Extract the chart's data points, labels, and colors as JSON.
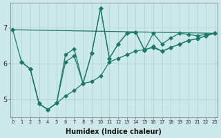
{
  "xlabel": "Humidex (Indice chaleur)",
  "bg_color": "#cce8e8",
  "grid_color": "#b0d4d4",
  "line_color": "#1a7a6a",
  "yticks": [
    5,
    6,
    7
  ],
  "xtick_labels": [
    "0",
    "1",
    "2",
    "3",
    "4",
    "5",
    "6",
    "7",
    "8",
    "9",
    "10",
    "11",
    "12",
    "13",
    "14",
    "15",
    "16",
    "17",
    "18",
    "19",
    "20",
    "21",
    "22",
    "23"
  ],
  "ylim": [
    4.5,
    7.7
  ],
  "xlim": [
    -0.3,
    23.3
  ],
  "line1_x": [
    0,
    23
  ],
  "line1_y": [
    6.95,
    6.85
  ],
  "line2_x": [
    0,
    1,
    2,
    3,
    4,
    5,
    6,
    7,
    8,
    9,
    10,
    11,
    12,
    13,
    14,
    15,
    16,
    17,
    18,
    19,
    20,
    21,
    22,
    23
  ],
  "line2_y": [
    6.95,
    6.05,
    5.85,
    4.88,
    4.72,
    4.9,
    5.1,
    5.25,
    5.45,
    5.5,
    5.65,
    6.05,
    6.15,
    6.25,
    6.35,
    6.4,
    6.45,
    6.35,
    6.45,
    6.55,
    6.65,
    6.7,
    6.78,
    6.85
  ],
  "line3_x": [
    1,
    2,
    3,
    4,
    5,
    6,
    7,
    8,
    9,
    10,
    11,
    12,
    13,
    14,
    15,
    16,
    17,
    18,
    19,
    20,
    21,
    22,
    23
  ],
  "line3_y": [
    6.05,
    5.85,
    4.88,
    4.72,
    4.9,
    6.25,
    6.42,
    5.45,
    6.3,
    7.55,
    6.15,
    6.55,
    6.85,
    6.88,
    6.38,
    6.85,
    6.55,
    6.72,
    6.85,
    6.82,
    6.78,
    6.82,
    6.85
  ],
  "line4_x": [
    1,
    2,
    3,
    4,
    5,
    6,
    7,
    8,
    9,
    10,
    11,
    12,
    13,
    14,
    15,
    16,
    17,
    18,
    19,
    20,
    21,
    22,
    23
  ],
  "line4_y": [
    6.05,
    5.85,
    4.88,
    4.72,
    4.9,
    6.05,
    6.22,
    5.45,
    6.3,
    7.55,
    6.15,
    6.55,
    6.85,
    6.88,
    6.38,
    6.48,
    6.35,
    6.45,
    6.55,
    6.65,
    6.7,
    6.78,
    6.85
  ]
}
